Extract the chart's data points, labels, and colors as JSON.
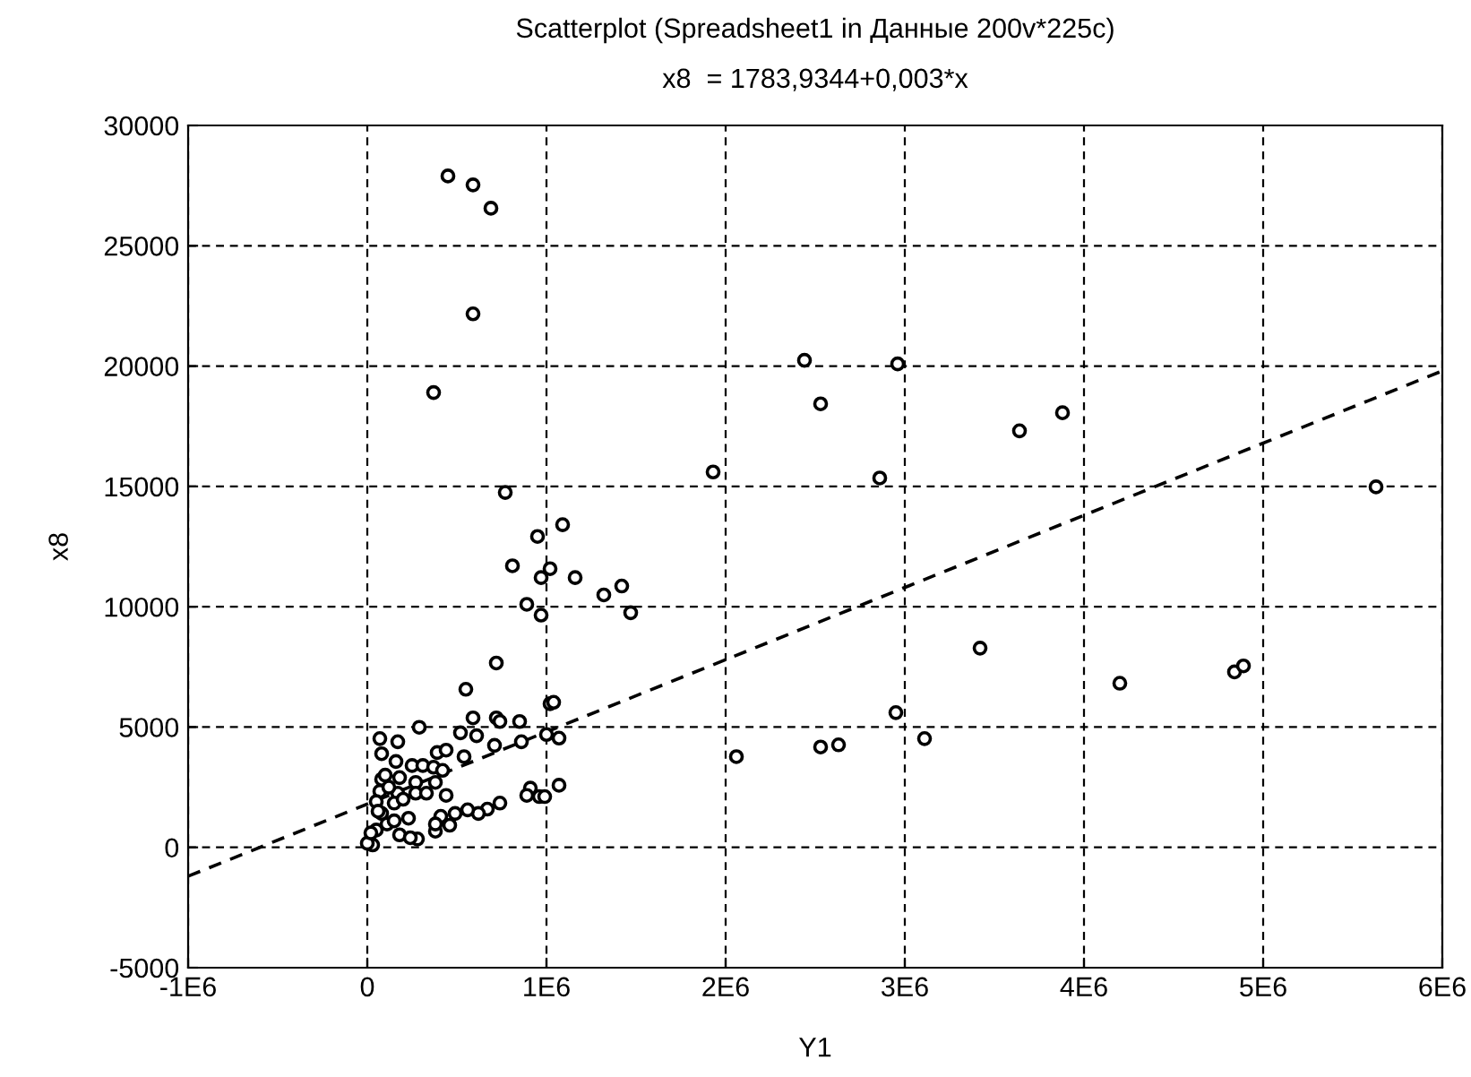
{
  "chart_data": {
    "type": "scatter",
    "title": "Scatterplot (Spreadsheet1 in Данные 200v*225c)",
    "subtitle": "x8  = 1783,9344+0,003*x",
    "xlabel": "Y1",
    "ylabel": "x8",
    "xlim": [
      -1000000,
      6000000
    ],
    "ylim": [
      -5000,
      30000
    ],
    "xticks": [
      {
        "value": -1000000,
        "label": "-1E6"
      },
      0,
      {
        "value": 1000000,
        "label": "1E6"
      },
      {
        "value": 2000000,
        "label": "2E6"
      },
      {
        "value": 3000000,
        "label": "3E6"
      },
      {
        "value": 4000000,
        "label": "4E6"
      },
      {
        "value": 5000000,
        "label": "5E6"
      },
      {
        "value": 6000000,
        "label": "6E6"
      }
    ],
    "yticks": [
      -5000,
      0,
      5000,
      10000,
      15000,
      20000,
      25000,
      30000
    ],
    "grid": true,
    "marker": "circle",
    "series": [
      {
        "color": "#000000",
        "x": [
          450000,
          590000,
          690000,
          590000,
          370000,
          770000,
          950000,
          1090000,
          1930000,
          2440000,
          2960000,
          2530000,
          2860000,
          5630000,
          3640000,
          3880000,
          3420000,
          4200000,
          4840000,
          4890000,
          2950000,
          3110000,
          2530000,
          2630000,
          2060000,
          810000,
          1020000,
          970000,
          1160000,
          890000,
          970000,
          1320000,
          1420000,
          1470000,
          720000,
          550000,
          1020000,
          1040000,
          590000,
          720000,
          740000,
          850000,
          290000,
          520000,
          610000,
          1000000,
          1070000,
          70000,
          170000,
          710000,
          860000,
          80000,
          390000,
          440000,
          160000,
          540000,
          250000,
          310000,
          370000,
          420000,
          80000,
          180000,
          270000,
          380000,
          70000,
          170000,
          270000,
          330000,
          440000,
          910000,
          1070000,
          890000,
          960000,
          990000,
          740000,
          670000,
          620000,
          560000,
          490000,
          410000,
          460000,
          380000,
          380000,
          150000,
          230000,
          80000,
          110000,
          50000,
          180000,
          280000,
          240000,
          30000,
          0,
          50000,
          120000,
          20000,
          100000,
          200000,
          150000,
          60000
        ],
        "values": [
          27900,
          27530,
          26560,
          22170,
          18900,
          14750,
          12920,
          13410,
          15600,
          20240,
          20090,
          18430,
          15350,
          14980,
          17310,
          18060,
          8280,
          6820,
          7290,
          7540,
          5600,
          4520,
          4170,
          4260,
          3770,
          11700,
          11580,
          11210,
          11210,
          10100,
          9650,
          10490,
          10860,
          9750,
          7660,
          6570,
          5970,
          6030,
          5380,
          5380,
          5230,
          5230,
          4990,
          4760,
          4640,
          4690,
          4540,
          4520,
          4390,
          4240,
          4390,
          3890,
          3940,
          4040,
          3570,
          3770,
          3400,
          3400,
          3330,
          3200,
          2830,
          2900,
          2700,
          2700,
          2330,
          2250,
          2250,
          2250,
          2160,
          2460,
          2580,
          2160,
          2110,
          2110,
          1840,
          1590,
          1410,
          1560,
          1410,
          1290,
          920,
          670,
          970,
          1840,
          1210,
          1410,
          970,
          720,
          520,
          350,
          400,
          100,
          170,
          1900,
          2500,
          600,
          3000,
          2000,
          1100,
          1500
        ]
      },
      {
        "type": "line",
        "line_style": "dashed",
        "marker": "none",
        "color": "#000000",
        "x": [
          -1000000,
          6000000
        ],
        "values": [
          -1200,
          19800
        ]
      }
    ]
  }
}
